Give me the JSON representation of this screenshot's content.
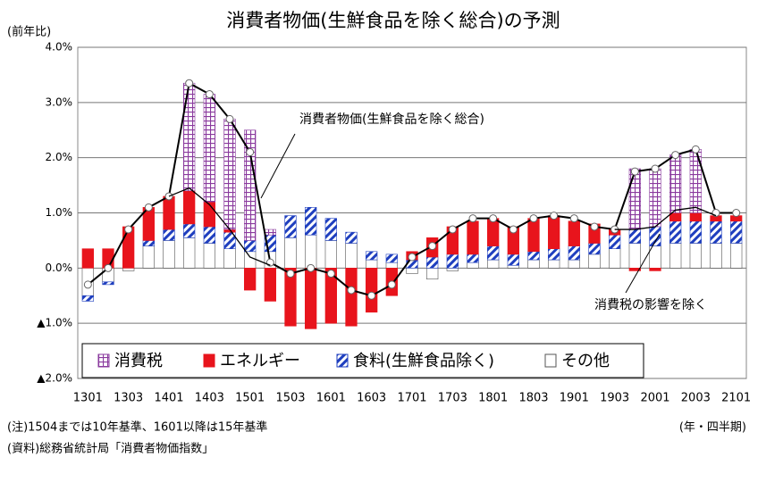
{
  "chart_data": {
    "type": "stacked_bar_line",
    "title": "消費者物価(生鮮食品を除く総合)の予測",
    "y_unit": "(前年比)",
    "x_unit": "(年・四半期)",
    "forecast_label": "予測",
    "note": "(注)1504までは10年基準、1601以降は15年基準",
    "source": "(資料)総務省統計局「消費者物価指数」",
    "categories": [
      "1301",
      null,
      "1303",
      null,
      "1401",
      null,
      "1403",
      null,
      "1501",
      null,
      "1503",
      null,
      "1601",
      null,
      "1603",
      null,
      "1701",
      null,
      "1703",
      null,
      "1801",
      null,
      "1803",
      null,
      "1901",
      null,
      "1903",
      null,
      "2001",
      null,
      "2003",
      null,
      "2101"
    ],
    "ylim": [
      -2.0,
      4.0
    ],
    "yticks": [
      {
        "value": 4.0,
        "label": "4.0%"
      },
      {
        "value": 3.0,
        "label": "3.0%"
      },
      {
        "value": 2.0,
        "label": "2.0%"
      },
      {
        "value": 1.0,
        "label": "1.0%"
      },
      {
        "value": 0.0,
        "label": "0.0%"
      },
      {
        "value": -1.0,
        "label": "▲1.0%"
      },
      {
        "value": -2.0,
        "label": "▲2.0%"
      }
    ],
    "grid": true,
    "legend": "bottom-left",
    "series": [
      {
        "name": "その他",
        "kind": "bar",
        "color": "#ffffff",
        "values": [
          -0.5,
          -0.25,
          -0.05,
          0.4,
          0.5,
          0.55,
          0.45,
          0.35,
          0.3,
          0.3,
          0.55,
          0.6,
          0.5,
          0.45,
          0.15,
          0.1,
          -0.1,
          -0.2,
          -0.05,
          0.1,
          0.15,
          0.05,
          0.15,
          0.15,
          0.15,
          0.25,
          0.35,
          0.45,
          0.4,
          0.45,
          0.45,
          0.45,
          0.45
        ]
      },
      {
        "name": "食料(生鮮食品除く)",
        "kind": "bar",
        "color": "#1f3fbf",
        "values": [
          -0.1,
          -0.05,
          0.0,
          0.1,
          0.2,
          0.25,
          0.3,
          0.3,
          0.2,
          0.3,
          0.4,
          0.5,
          0.4,
          0.2,
          0.15,
          0.15,
          0.15,
          0.2,
          0.25,
          0.15,
          0.25,
          0.2,
          0.15,
          0.2,
          0.25,
          0.2,
          0.25,
          0.25,
          0.35,
          0.4,
          0.4,
          0.4,
          0.4
        ]
      },
      {
        "name": "エネルギー",
        "kind": "bar",
        "color": "#e8141c",
        "values": [
          0.35,
          0.35,
          0.75,
          0.6,
          0.6,
          0.6,
          0.45,
          0.05,
          -0.4,
          -0.6,
          -1.05,
          -1.1,
          -1.0,
          -1.05,
          -0.8,
          -0.5,
          0.15,
          0.35,
          0.5,
          0.6,
          0.5,
          0.5,
          0.6,
          0.6,
          0.45,
          0.35,
          0.1,
          -0.05,
          -0.05,
          0.15,
          0.15,
          0.1,
          0.1
        ]
      },
      {
        "name": "消費税",
        "kind": "bar",
        "color": "#8a3a9e",
        "values": [
          0,
          0,
          0,
          0,
          0,
          1.95,
          1.95,
          2.0,
          2.0,
          0.1,
          0,
          0,
          0,
          0,
          0,
          0,
          0,
          0,
          0,
          0,
          0,
          0,
          0,
          0,
          0,
          0,
          0,
          1.1,
          1.05,
          1.05,
          1.15,
          0,
          0
        ]
      },
      {
        "name": "消費者物価(生鮮食品を除く総合)",
        "kind": "line",
        "color": "#000000",
        "markers": true,
        "values": [
          -0.3,
          0.0,
          0.7,
          1.1,
          1.3,
          3.35,
          3.15,
          2.7,
          2.1,
          0.1,
          -0.1,
          0.0,
          -0.1,
          -0.4,
          -0.5,
          -0.3,
          0.2,
          0.4,
          0.7,
          0.9,
          0.9,
          0.7,
          0.9,
          0.95,
          0.9,
          0.75,
          0.7,
          1.75,
          1.8,
          2.05,
          2.15,
          1.0,
          1.0
        ]
      },
      {
        "name": "消費税の影響を除く",
        "kind": "line",
        "color": "#000000",
        "markers": false,
        "values": [
          null,
          null,
          null,
          null,
          1.3,
          1.45,
          1.15,
          0.7,
          0.2,
          0.05,
          null,
          null,
          null,
          null,
          null,
          null,
          null,
          null,
          null,
          null,
          null,
          null,
          null,
          null,
          null,
          null,
          0.7,
          0.7,
          0.75,
          1.05,
          1.1,
          0.95,
          null
        ]
      }
    ]
  }
}
